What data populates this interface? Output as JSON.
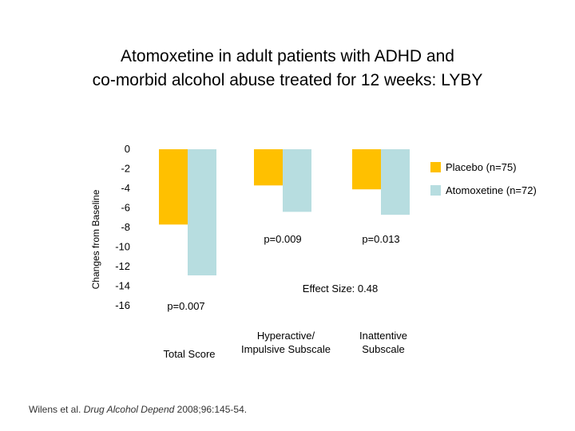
{
  "title_line1": "Atomoxetine in adult patients with ADHD and",
  "title_line2": "co-morbid alcohol abuse treated for 12 weeks: LYBY",
  "citation": {
    "authors": "Wilens et al. ",
    "journal": "Drug Alcohol Depend",
    "details": " 2008;96:145-54."
  },
  "colors": {
    "placebo": "#FFC000",
    "atomoxetine": "#B7DDE0"
  },
  "chart_data": {
    "type": "bar",
    "categories": [
      "Total Score",
      "Hyperactive/ Impulsive Subscale",
      "Inattentive Subscale"
    ],
    "category_lines": [
      [
        "Total Score"
      ],
      [
        "Hyperactive/",
        "Impulsive Subscale"
      ],
      [
        "Inattentive",
        "Subscale"
      ]
    ],
    "series": [
      {
        "name": "Placebo (n=75)",
        "values": [
          -7.7,
          -3.7,
          -4.1
        ]
      },
      {
        "name": "Atomoxetine (n=72)",
        "values": [
          -12.9,
          -6.4,
          -6.7
        ]
      }
    ],
    "ylabel": "Changes from Baseline",
    "ylim": [
      -16,
      0
    ],
    "yticks": [
      0,
      -2,
      -4,
      -6,
      -8,
      -10,
      -12,
      -14,
      -16
    ],
    "legend": "right",
    "grid": false,
    "annotations": {
      "p_values": [
        "p=0.007",
        "p=0.009",
        "p=0.013"
      ],
      "effect_size": "Effect Size: 0.48"
    }
  }
}
